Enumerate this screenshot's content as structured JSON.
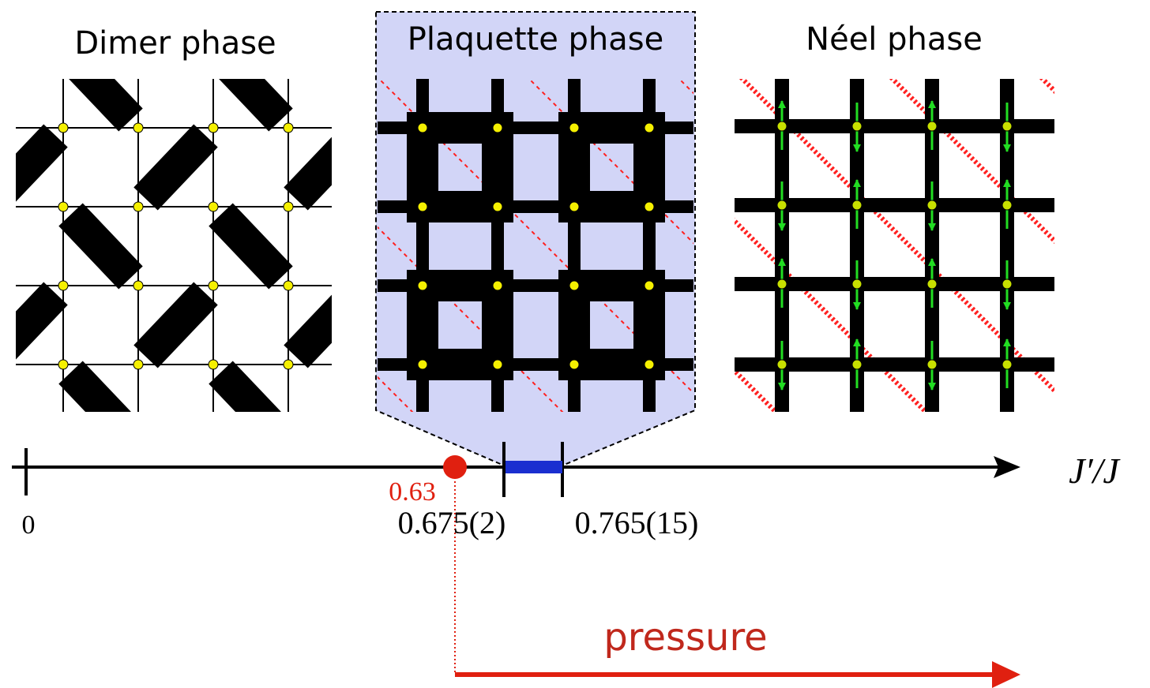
{
  "phases": [
    {
      "label": "Dimer phase"
    },
    {
      "label": "Plaquette phase"
    },
    {
      "label": "Néel phase"
    }
  ],
  "axis": {
    "label": "J′/J",
    "marker": "0.63",
    "ticks": [
      "0",
      "0.675(2)",
      "0.765(15)"
    ]
  },
  "arrow_label": "pressure"
}
